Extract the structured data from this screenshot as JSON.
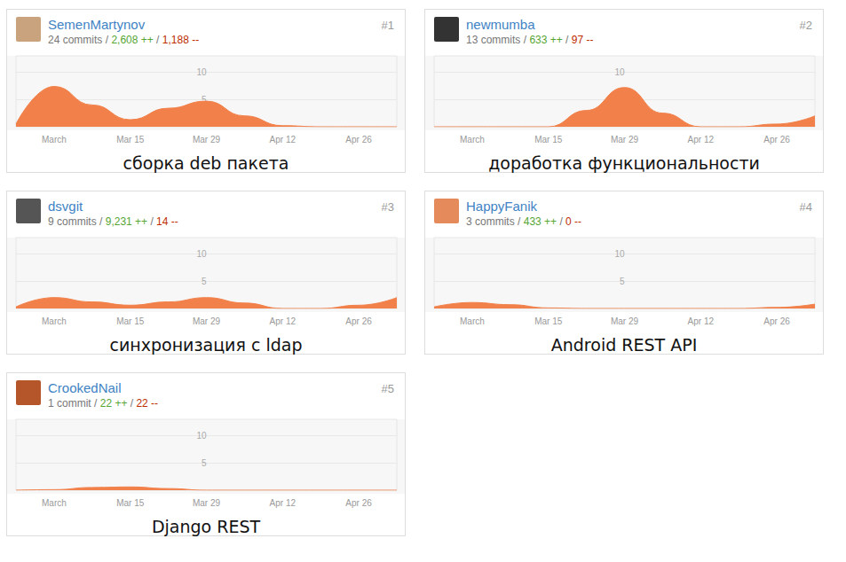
{
  "chart_data": [
    {
      "type": "area",
      "title": "SemenMartynov",
      "subtitle": "24 commits / 2,608 ++ / 1,188 --",
      "rank": "#1",
      "caption": "сборка deb пакета",
      "categories": [
        null,
        "March",
        null,
        "Mar 15",
        null,
        "Mar 29",
        null,
        "Apr 12",
        null,
        "Apr 26",
        null
      ],
      "values": [
        0.5,
        7.4,
        4,
        1.3,
        3.4,
        4.7,
        2,
        0.2,
        0,
        0,
        0
      ],
      "color": "#f1804a",
      "ylim": [
        0,
        13
      ],
      "yticks": [
        5,
        10
      ],
      "grid": true
    },
    {
      "type": "area",
      "title": "newmumba",
      "subtitle": "13 commits / 633 ++ / 97 --",
      "rank": "#2",
      "caption": "доработка функциональности",
      "categories": [
        null,
        "March",
        null,
        "Mar 15",
        null,
        "Mar 29",
        null,
        "Apr 12",
        null,
        "Apr 26",
        null
      ],
      "values": [
        0,
        0,
        0,
        0,
        3,
        7.2,
        2.5,
        0,
        0,
        0.5,
        2
      ],
      "color": "#f1804a",
      "ylim": [
        0,
        13
      ],
      "yticks": [
        5,
        10
      ],
      "grid": true
    },
    {
      "type": "area",
      "title": "dsvgit",
      "subtitle": "9 commits / 9,231 ++ / 14 --",
      "rank": "#3",
      "caption": "синхронизация с ldap",
      "categories": [
        null,
        "March",
        null,
        "Mar 15",
        null,
        "Mar 29",
        null,
        "Apr 12",
        null,
        "Apr 26",
        null
      ],
      "values": [
        0.3,
        2,
        1.2,
        0.6,
        1.2,
        2,
        1,
        0,
        0,
        0.6,
        2
      ],
      "color": "#f1804a",
      "ylim": [
        0,
        13
      ],
      "yticks": [
        5,
        10
      ],
      "grid": true
    },
    {
      "type": "area",
      "title": "HappyFanik",
      "subtitle": "3 commits / 433 ++ / 0 --",
      "rank": "#4",
      "caption": "Android REST API",
      "categories": [
        null,
        "March",
        null,
        "Mar 15",
        null,
        "Mar 29",
        null,
        "Apr 12",
        null,
        "Apr 26",
        null
      ],
      "values": [
        0.3,
        1.1,
        0.7,
        0.1,
        0,
        0,
        0,
        0,
        0,
        0.2,
        0.8
      ],
      "color": "#f1804a",
      "ylim": [
        0,
        13
      ],
      "yticks": [
        5,
        10
      ],
      "grid": true
    },
    {
      "type": "area",
      "title": "CrookedNail",
      "subtitle": "1 commit / 22 ++ / 22 --",
      "rank": "#5",
      "caption": "Django REST",
      "categories": [
        null,
        "March",
        null,
        "Mar 15",
        null,
        "Mar 29",
        null,
        "Apr 12",
        null,
        "Apr 26",
        null
      ],
      "values": [
        0,
        0.1,
        0.5,
        0.6,
        0.3,
        0,
        0,
        0,
        0,
        0,
        0
      ],
      "color": "#f1804a",
      "ylim": [
        0,
        13
      ],
      "yticks": [
        5,
        10
      ],
      "grid": true
    }
  ]
}
